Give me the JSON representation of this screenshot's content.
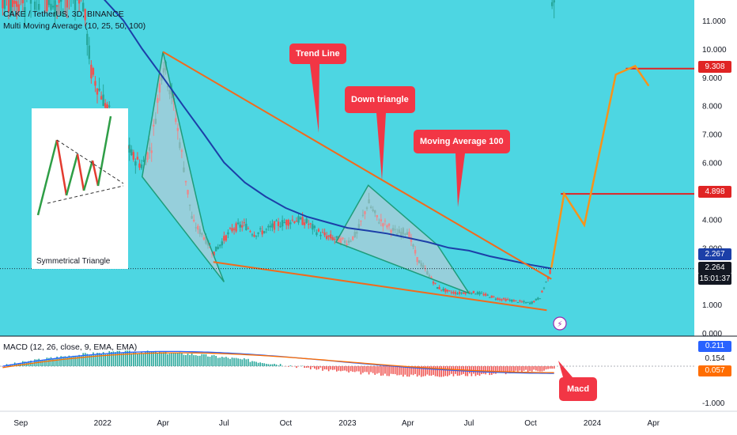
{
  "header": {
    "symbol_line": "CAKE / TetherUS, 3D, BINANCE",
    "indicator_line": "Multi Moving Average (10, 25, 50, 100)"
  },
  "colors": {
    "background": "#4dd6e2",
    "macd_background": "#ffffff",
    "trend_orange": "#f26a1b",
    "projection_orange": "#f7931a",
    "ma100_blue": "#1c3fa8",
    "triangle_green": "#1e9c7a",
    "callout_red": "#f23645",
    "level_red": "#e02424",
    "candle_up": "#26a69a",
    "candle_down": "#ef5350"
  },
  "annotations": {
    "trend_line": "Trend Line",
    "down_triangle": "Down triangle",
    "moving_average": "Moving Average 100",
    "macd": "Macd",
    "symmetrical_triangle": "Symmetrical Triangle"
  },
  "price_axis": {
    "ticks": [
      "11.000",
      "10.000",
      "9.000",
      "8.000",
      "7.000",
      "6.000",
      "5.000",
      "4.000",
      "3.000",
      "2.000",
      "1.000",
      "0.000"
    ],
    "tags": {
      "target_high": "9.308",
      "target_mid": "4.898",
      "ma_value": "2.267",
      "last_price": "2.264",
      "countdown": "15:01:37"
    }
  },
  "time_axis": {
    "ticks": [
      "Sep",
      "2022",
      "Apr",
      "Jul",
      "Oct",
      "2023",
      "Apr",
      "Jul",
      "Oct",
      "2024",
      "Apr"
    ]
  },
  "macd": {
    "title": "MACD (12, 26, close, 9, EMA, EMA)",
    "values": {
      "macd": "0.211",
      "signal": "0.154",
      "histogram": "0.057"
    },
    "axis_label": "-1.000"
  },
  "chart_data": {
    "type": "line",
    "x_range": [
      "2021-08",
      "2024-06"
    ],
    "ylim": [
      0,
      11.5
    ],
    "y_scale": "linear",
    "series": [],
    "price": {
      "dates": [
        "2021-12-01",
        "2021-12-15",
        "2022-01-01",
        "2022-01-15",
        "2022-02-01",
        "2022-02-15",
        "2022-03-01",
        "2022-03-15",
        "2022-04-01",
        "2022-04-15",
        "2022-05-01",
        "2022-05-15",
        "2022-06-01",
        "2022-06-15",
        "2022-07-01",
        "2022-07-15",
        "2022-08-01",
        "2022-08-15",
        "2022-09-01",
        "2022-09-15",
        "2022-10-01",
        "2022-10-15",
        "2022-11-01",
        "2022-11-15",
        "2022-12-01",
        "2022-12-15",
        "2023-01-01",
        "2023-01-15",
        "2023-02-01",
        "2023-02-15",
        "2023-03-01",
        "2023-03-15",
        "2023-04-01",
        "2023-04-15",
        "2023-05-01",
        "2023-05-15",
        "2023-06-01",
        "2023-06-15",
        "2023-07-01",
        "2023-07-15",
        "2023-08-01",
        "2023-08-15",
        "2023-09-01",
        "2023-09-15",
        "2023-10-01",
        "2023-10-15",
        "2023-11-01"
      ],
      "values": [
        12.0,
        9.2,
        8.3,
        7.5,
        6.8,
        6.2,
        5.9,
        6.6,
        9.6,
        8.3,
        6.0,
        3.9,
        3.4,
        2.8,
        3.3,
        3.7,
        3.8,
        3.5,
        3.6,
        3.8,
        3.9,
        4.0,
        3.9,
        3.6,
        3.4,
        3.3,
        3.2,
        3.5,
        4.6,
        4.0,
        3.8,
        3.5,
        3.6,
        2.6,
        2.1,
        1.6,
        1.45,
        1.4,
        1.45,
        1.4,
        1.3,
        1.2,
        1.15,
        1.1,
        1.05,
        1.25,
        2.26
      ]
    },
    "ma100": {
      "dates": [
        "2022-01-01",
        "2022-02-01",
        "2022-03-01",
        "2022-04-01",
        "2022-05-01",
        "2022-06-01",
        "2022-07-01",
        "2022-08-01",
        "2022-09-01",
        "2022-10-01",
        "2022-11-01",
        "2022-12-01",
        "2023-01-01",
        "2023-02-01",
        "2023-03-01",
        "2023-04-01",
        "2023-05-01",
        "2023-06-01",
        "2023-07-01",
        "2023-08-01",
        "2023-09-01",
        "2023-10-01",
        "2023-11-01"
      ],
      "values": [
        11.8,
        11.0,
        10.0,
        9.0,
        8.0,
        7.0,
        6.0,
        5.3,
        4.8,
        4.4,
        4.1,
        3.9,
        3.7,
        3.6,
        3.5,
        3.35,
        3.2,
        3.0,
        2.9,
        2.7,
        2.55,
        2.4,
        2.27
      ]
    },
    "trend_line": {
      "dates": [
        "2022-04-01",
        "2023-11-01"
      ],
      "values": [
        9.9,
        1.9
      ]
    },
    "support_line": {
      "dates": [
        "2022-06-15",
        "2023-10-25"
      ],
      "values": [
        2.5,
        0.8
      ]
    },
    "wedge_triangle": {
      "dates": [
        "2022-03-01",
        "2022-04-01",
        "2022-06-01",
        "2022-07-01"
      ],
      "values": [
        5.5,
        9.9,
        3.6,
        1.8
      ]
    },
    "down_triangle": {
      "dates": [
        "2022-12-15",
        "2023-02-01",
        "2023-05-15",
        "2023-07-01"
      ],
      "values": [
        3.2,
        5.2,
        3.1,
        1.4
      ]
    },
    "projection": {
      "dates": [
        "2023-11-01",
        "2023-11-20",
        "2023-12-20",
        "2024-02-05",
        "2024-03-05",
        "2024-03-25"
      ],
      "values": [
        2.3,
        4.9,
        3.8,
        9.1,
        9.4,
        8.7
      ]
    },
    "levels": [
      9.308,
      4.898
    ],
    "time_axis_labels": [
      "Sep",
      "2022",
      "Apr",
      "Jul",
      "Oct",
      "2023",
      "Apr",
      "Jul",
      "Oct",
      "2024",
      "Apr"
    ]
  }
}
